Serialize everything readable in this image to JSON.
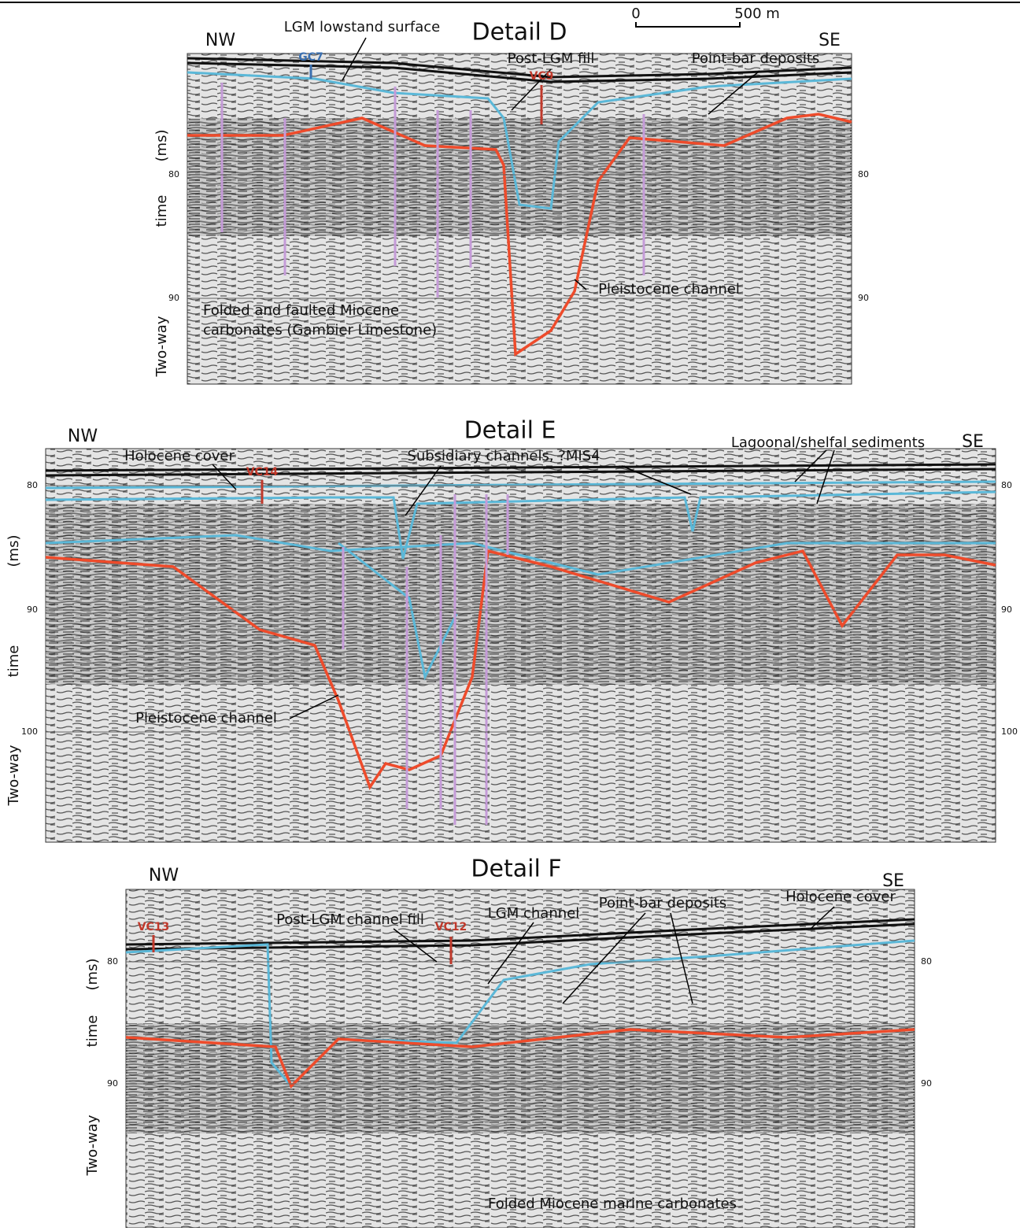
{
  "figure": {
    "scale_bar": {
      "start": "0",
      "end": "500 m"
    },
    "panels": [
      {
        "title": "Detail D",
        "left": "NW",
        "right": "SE",
        "axis_label": [
          "Two-way",
          "time",
          "(ms)"
        ],
        "ticks": [
          "80",
          "90"
        ],
        "annotations": [
          "LGM lowstand surface",
          "GC7",
          "VC9",
          "Post-LGM fill",
          "Point-bar deposits",
          "Pleistocene channel",
          "Folded and faulted Miocene",
          "carbonates (Gambier Limestone)"
        ]
      },
      {
        "title": "Detail E",
        "left": "NW",
        "right": "SE",
        "axis_label": [
          "Two-way",
          "time",
          "(ms)"
        ],
        "ticks": [
          "80",
          "90",
          "100"
        ],
        "annotations": [
          "Holocene cover",
          "VC14",
          "Subsidiary channels, ?MIS4",
          "Lagoonal/shelfal sediments",
          "Pleistocene channel"
        ]
      },
      {
        "title": "Detail F",
        "left": "NW",
        "right": "SE",
        "axis_label": [
          "Two-way",
          "time",
          "(ms)"
        ],
        "ticks": [
          "80",
          "90"
        ],
        "annotations": [
          "VC13",
          "Post-LGM channel fill",
          "VC12",
          "LGM channel",
          "Point-bar deposits",
          "Holocene cover",
          "Folded Miocene marine carbonates"
        ]
      }
    ]
  }
}
